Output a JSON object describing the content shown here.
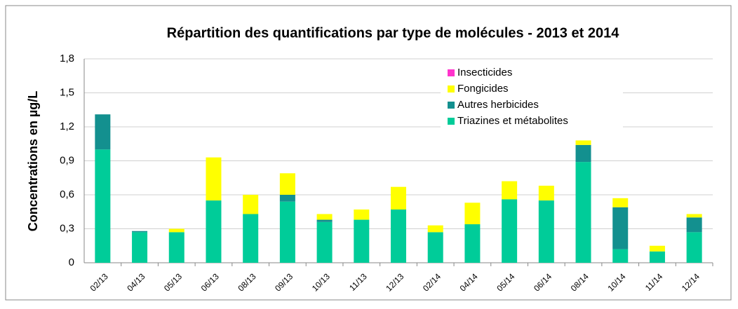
{
  "chart_data": {
    "type": "stacked_bar",
    "title": "Répartition des quantifications par type de molécules - 2013 et 2014",
    "y_label": "Concentrations en µg/L",
    "categories": [
      "02/13",
      "04/13",
      "05/13",
      "06/13",
      "08/13",
      "09/13",
      "10/13",
      "11/13",
      "12/13",
      "02/14",
      "04/14",
      "05/14",
      "06/14",
      "08/14",
      "10/14",
      "11/14",
      "12/14"
    ],
    "series": [
      {
        "name": "Triazines et métabolites",
        "color": "#00cc99",
        "values": [
          1.0,
          0.27,
          0.27,
          0.55,
          0.43,
          0.54,
          0.36,
          0.38,
          0.47,
          0.27,
          0.34,
          0.56,
          0.55,
          0.89,
          0.12,
          0.1,
          0.27
        ]
      },
      {
        "name": "Autres herbicides",
        "color": "#13908f",
        "values": [
          0.31,
          0.01,
          0,
          0,
          0,
          0.06,
          0.02,
          0,
          0,
          0,
          0,
          0,
          0,
          0.15,
          0.37,
          0,
          0.13
        ]
      },
      {
        "name": "Fongicides",
        "color": "#ffff00",
        "values": [
          0,
          0,
          0.03,
          0.38,
          0.17,
          0.19,
          0.05,
          0.09,
          0.2,
          0.06,
          0.19,
          0.16,
          0.13,
          0.04,
          0.08,
          0.05,
          0.03
        ]
      },
      {
        "name": "Insecticides",
        "color": "#ff33cc",
        "values": [
          0,
          0,
          0,
          0,
          0,
          0,
          0,
          0,
          0,
          0,
          0,
          0,
          0,
          0,
          0,
          0,
          0
        ]
      }
    ],
    "ylim": [
      0,
      1.8
    ],
    "yticks": [
      0,
      {
        "value": 0.3,
        "label": "0,3"
      },
      {
        "value": 0.6,
        "label": "0,6"
      },
      {
        "value": 0.9,
        "label": "0,9"
      },
      {
        "value": 1.2,
        "label": "1,2"
      },
      {
        "value": 1.5,
        "label": "1,5"
      },
      {
        "value": 1.8,
        "label": "1,8"
      }
    ],
    "grid": true,
    "legend": "top-right"
  }
}
